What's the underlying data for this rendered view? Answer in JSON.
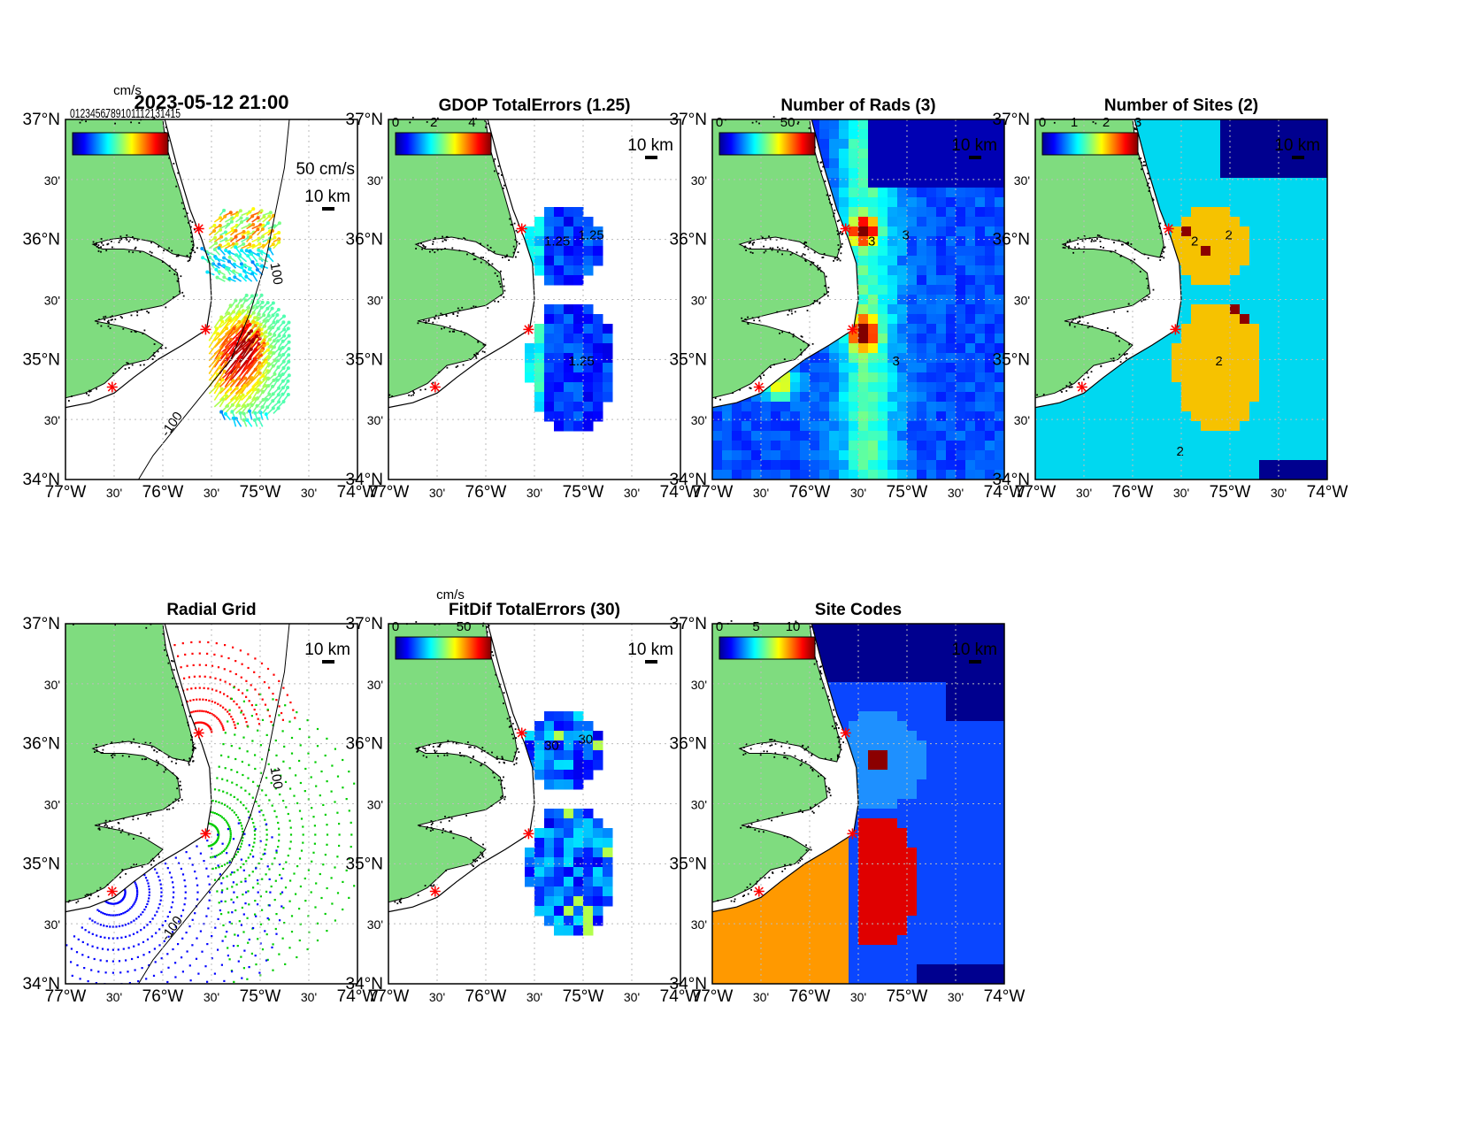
{
  "figure": {
    "main_title": "2023-05-12 21:00",
    "colors": {
      "land": "#7fdc7f",
      "frame": "#000000",
      "site_marker": "#ff0000",
      "grid_line": "#cccccc"
    }
  },
  "axes_labels": {
    "lat": [
      "37°N",
      "30'",
      "36°N",
      "30'",
      "35°N",
      "30'",
      "34°N"
    ],
    "lon": [
      "77°W",
      "30'",
      "76°W",
      "30'",
      "75°W",
      "30'",
      "74°W"
    ]
  },
  "panels": [
    {
      "id": "currents",
      "title": "",
      "colorbar": {
        "unit": "cm/s",
        "ticks": [],
        "overlap_text": "0123456789101112131415"
      },
      "scale_vector_label": "50 cm/s",
      "scale_bar_label": "10 km",
      "contour_labels": [
        "100",
        "-100"
      ],
      "kind": "vectors"
    },
    {
      "id": "gdop",
      "title": "GDOP TotalErrors (1.25)",
      "colorbar": {
        "unit": "",
        "ticks": [
          "0",
          "2",
          "4"
        ]
      },
      "scale_bar_label": "10 km",
      "contour_labels": [
        "1.25",
        "1.25",
        "1.25"
      ],
      "kind": "cells"
    },
    {
      "id": "rads",
      "title": "Number of Rads (3)",
      "colorbar": {
        "unit": "",
        "ticks": [
          "0",
          "50"
        ]
      },
      "scale_bar_label": "10 km",
      "contour_labels": [
        "3",
        "3",
        "3"
      ],
      "kind": "cells"
    },
    {
      "id": "sites",
      "title": "Number of Sites (2)",
      "colorbar": {
        "unit": "",
        "ticks": [
          "0",
          "1",
          "2",
          "3"
        ]
      },
      "scale_bar_label": "10 km",
      "contour_labels": [
        "2",
        "2",
        "2",
        "2"
      ],
      "kind": "cells"
    },
    {
      "id": "radgrid",
      "title": "Radial Grid",
      "colorbar": null,
      "scale_bar_label": "10 km",
      "contour_labels": [
        "100",
        "-100"
      ],
      "kind": "radial"
    },
    {
      "id": "fitdif",
      "title": "FitDif TotalErrors (30)",
      "colorbar": {
        "unit": "cm/s",
        "ticks": [
          "0",
          "50"
        ]
      },
      "scale_bar_label": "10 km",
      "contour_labels": [
        "30",
        "30"
      ],
      "kind": "cells"
    },
    {
      "id": "sitecodes",
      "title": "Site Codes",
      "colorbar": {
        "unit": "",
        "ticks": [
          "0",
          "5",
          "10"
        ]
      },
      "scale_bar_label": "10 km",
      "contour_labels": [],
      "kind": "cells"
    }
  ],
  "chart_data": {
    "type": "heatmap",
    "title": "2023-05-12 21:00",
    "xlim": [
      -77,
      -74
    ],
    "ylim": [
      34,
      37
    ],
    "xlabel": "",
    "ylabel": "",
    "radar_sites": [
      {
        "lon": -75.63,
        "lat": 36.09
      },
      {
        "lon": -75.56,
        "lat": 35.25
      },
      {
        "lon": -76.52,
        "lat": 34.77
      }
    ],
    "panels": [
      {
        "title": "",
        "variable": "surface current vectors",
        "unit": "cm/s"
      },
      {
        "title": "GDOP TotalErrors (1.25)",
        "range": [
          0,
          5
        ],
        "contour": 1.25
      },
      {
        "title": "Number of Rads (3)",
        "range": [
          0,
          70
        ],
        "contour": 3
      },
      {
        "title": "Number of Sites (2)",
        "range": [
          0,
          3
        ],
        "contour": 2
      },
      {
        "title": "Radial Grid",
        "series_colors": [
          "#ff0000",
          "#00cc00",
          "#0000ff"
        ]
      },
      {
        "title": "FitDif TotalErrors (30)",
        "range": [
          0,
          70
        ],
        "unit": "cm/s",
        "contour": 30
      },
      {
        "title": "Site Codes",
        "range": [
          0,
          13
        ]
      }
    ]
  }
}
